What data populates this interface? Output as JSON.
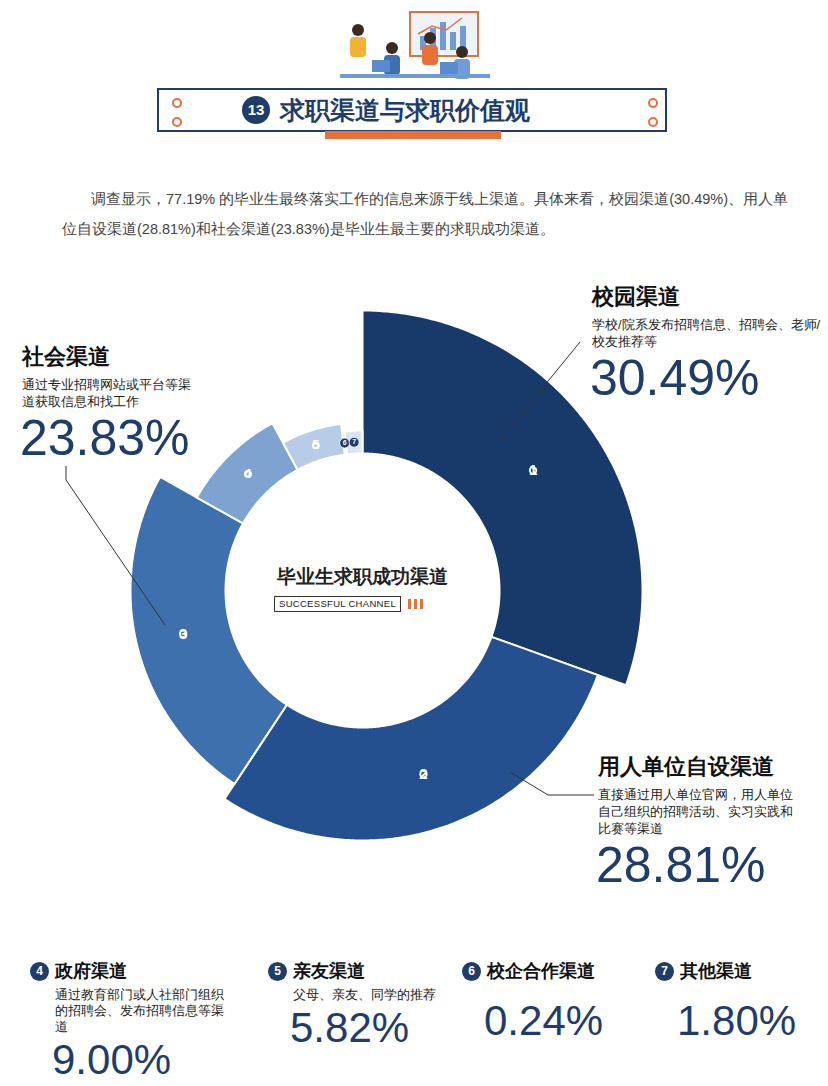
{
  "header": {
    "number": "13",
    "title": "求职渠道与求职价值观"
  },
  "intro": "调查显示，77.19% 的毕业生最终落实工作的信息来源于线上渠道。具体来看，校园渠道(30.49%)、用人单位自设渠道(28.81%)和社会渠道(23.83%)是毕业生最主要的求职成功渠道。",
  "chart_data": {
    "type": "pie",
    "title": "毕业生求职成功渠道",
    "subtitle": "SUCCESSFUL CHANNEL",
    "numbers": [
      "1",
      "2",
      "3",
      "4",
      "5",
      "6",
      "7"
    ],
    "categories": [
      "校园渠道",
      "用人单位自设渠道",
      "社会渠道",
      "政府渠道",
      "亲友渠道",
      "校企合作渠道",
      "其他渠道"
    ],
    "descriptions": [
      "学校/院系发布招聘信息、招聘会、老师/校友推荐等",
      "直接通过用人单位官网，用人单位自己组织的招聘活动、实习实践和比赛等渠道",
      "通过专业招聘网站或平台等渠道获取信息和找工作",
      "通过教育部门或人社部门组织的招聘会、发布招聘信息等渠道",
      "父母、亲友、同学的推荐",
      null,
      null
    ],
    "values": [
      30.49,
      28.81,
      23.83,
      9.0,
      5.82,
      0.24,
      1.8
    ],
    "value_labels": [
      "30.49%",
      "28.81%",
      "23.83%",
      "9.00%",
      "5.82%",
      "0.24%",
      "1.80%"
    ],
    "colors": [
      "#173a6b",
      "#24508f",
      "#3e70ae",
      "#7fa3d0",
      "#b7cce6",
      "#c9d8ec",
      "#dbe5f2"
    ],
    "data_labels": true
  }
}
